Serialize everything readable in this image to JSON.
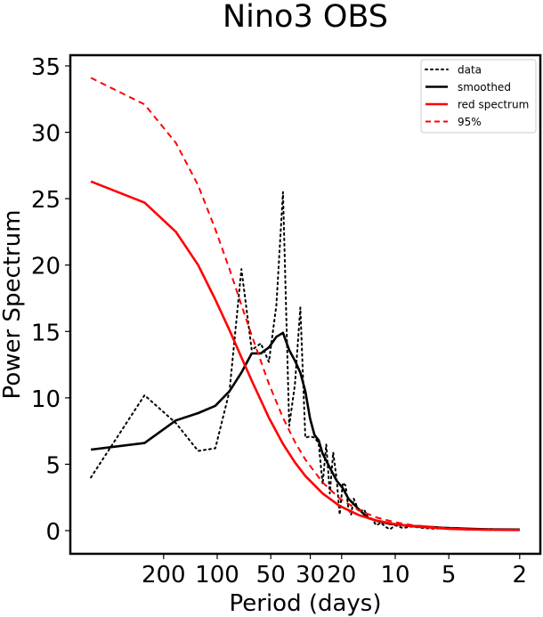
{
  "chart_data": {
    "type": "line",
    "title": "Nino3 OBS",
    "xlabel": "Period (days)",
    "ylabel": "Power Spectrum",
    "x_scale": "log-frequency",
    "xlim_frequency": [
      0.00195,
      0.5
    ],
    "ylim": [
      -1.7,
      35.8
    ],
    "yticks": [
      0,
      5,
      10,
      15,
      20,
      25,
      30,
      35
    ],
    "xticks_period": [
      200,
      100,
      50,
      30,
      20,
      10,
      5,
      2
    ],
    "xtick_labels": [
      "200",
      "100",
      "50",
      "30",
      "20",
      "10",
      "5",
      "2"
    ],
    "grid": false,
    "legend": {
      "position": "top-right",
      "entries": [
        "data",
        "smoothed",
        "red spectrum",
        "95%"
      ]
    },
    "series": [
      {
        "name": "data",
        "color": "#000000",
        "style": "dotted",
        "period": [
          512,
          256,
          170.7,
          128,
          102.4,
          85.3,
          73.1,
          64,
          56.9,
          51.2,
          46.5,
          42.7,
          39.4,
          36.6,
          34.1,
          32,
          30.1,
          28.4,
          26.9,
          25.6,
          24.4,
          23.3,
          22.3,
          21.3,
          20.5,
          19.7,
          19,
          18.3,
          17.7,
          17.1,
          16.5,
          16,
          15,
          14.2,
          13.5,
          12.8,
          12,
          11.4,
          10.7,
          10,
          9.1,
          8,
          7,
          6,
          5,
          4,
          3,
          2.5,
          2
        ],
        "values": [
          4.0,
          10.2,
          8.1,
          6.0,
          6.2,
          10.5,
          19.7,
          13.6,
          14.1,
          12.7,
          17.0,
          25.5,
          7.9,
          11.0,
          16.8,
          7.0,
          7.1,
          7.0,
          6.6,
          3.5,
          6.5,
          2.8,
          5.9,
          3.8,
          1.2,
          3.6,
          3.4,
          1.6,
          1.2,
          2.4,
          1.9,
          1.4,
          1.6,
          1.0,
          0.9,
          0.4,
          0.6,
          0.3,
          0.1,
          0.4,
          0.2,
          0.3,
          0.2,
          0.15,
          0.2,
          0.1,
          0.12,
          0.08,
          0.1
        ]
      },
      {
        "name": "smoothed",
        "color": "#000000",
        "style": "solid",
        "period": [
          512,
          256,
          170.7,
          128,
          102.4,
          85.3,
          73.1,
          64,
          56.9,
          51.2,
          46.5,
          42.7,
          39.4,
          36.6,
          34.1,
          32,
          30.1,
          28.4,
          26.9,
          25.6,
          23.3,
          21.3,
          19.7,
          18.3,
          16,
          14.2,
          12.8,
          10.7,
          8,
          5.1,
          4,
          3,
          2
        ],
        "values": [
          6.1,
          6.6,
          8.3,
          8.85,
          9.4,
          10.5,
          11.9,
          13.35,
          13.35,
          13.8,
          14.6,
          14.9,
          13.6,
          12.8,
          11.9,
          10.5,
          8.45,
          7.2,
          6.8,
          5.8,
          4.75,
          3.75,
          3.2,
          2.4,
          1.6,
          0.95,
          0.75,
          0.5,
          0.35,
          0.2,
          0.15,
          0.1,
          0.08
        ]
      },
      {
        "name": "red spectrum",
        "color": "#ff0000",
        "style": "solid",
        "period": [
          512,
          256,
          170.7,
          128,
          102.4,
          85.3,
          73.1,
          64,
          51.2,
          42.7,
          36.6,
          32,
          25.6,
          20.5,
          16,
          12.8,
          10,
          8,
          5,
          4,
          3,
          2
        ],
        "values": [
          26.3,
          24.7,
          22.5,
          20.0,
          17.4,
          15.1,
          13.05,
          11.3,
          8.5,
          6.53,
          5.14,
          4.12,
          2.8,
          1.86,
          1.17,
          0.77,
          0.48,
          0.32,
          0.135,
          0.093,
          0.062,
          0.047
        ]
      },
      {
        "name": "95%",
        "color": "#ff0000",
        "style": "dashed",
        "period": [
          512,
          256,
          170.7,
          128,
          102.4,
          85.3,
          73.1,
          64,
          51.2,
          42.7,
          36.6,
          32,
          25.6,
          20.5,
          16,
          12.8,
          10,
          8,
          5,
          4,
          3,
          2
        ],
        "values": [
          34.1,
          32.1,
          29.2,
          26.0,
          22.7,
          19.7,
          17.0,
          14.7,
          11.05,
          8.5,
          6.68,
          5.36,
          3.63,
          2.42,
          1.53,
          1.0,
          0.63,
          0.41,
          0.18,
          0.12,
          0.08,
          0.06
        ]
      }
    ]
  }
}
